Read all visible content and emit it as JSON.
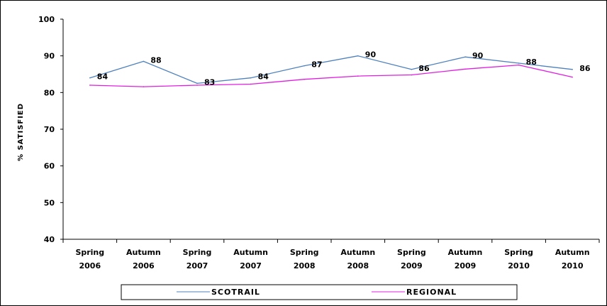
{
  "chart_data": {
    "type": "line",
    "title": "",
    "xlabel": "",
    "ylabel": "% SATISFIED",
    "ylim": [
      40,
      100
    ],
    "yticks": [
      40,
      50,
      60,
      70,
      80,
      90,
      100
    ],
    "categories": [
      [
        "Spring",
        "2006"
      ],
      [
        "Autumn",
        "2006"
      ],
      [
        "Spring",
        "2007"
      ],
      [
        "Autumn",
        "2007"
      ],
      [
        "Spring",
        "2008"
      ],
      [
        "Autumn",
        "2008"
      ],
      [
        "Spring",
        "2009"
      ],
      [
        "Autumn",
        "2009"
      ],
      [
        "Spring",
        "2010"
      ],
      [
        "Autumn",
        "2010"
      ]
    ],
    "series": [
      {
        "name": "SCOTRAIL",
        "color": "#4f81bd",
        "values": [
          84,
          88.5,
          82.5,
          84,
          87.3,
          90,
          86.3,
          89.7,
          88,
          86.3
        ],
        "labels": [
          "84",
          "88",
          "83",
          "84",
          "87",
          "90",
          "86",
          "90",
          "88",
          "86"
        ]
      },
      {
        "name": "REGIONAL",
        "color": "#e020e0",
        "values": [
          82,
          81.6,
          82,
          82.3,
          83.6,
          84.5,
          84.8,
          86.4,
          87.5,
          84.2
        ]
      }
    ],
    "grid": false,
    "legend_position": "bottom"
  }
}
